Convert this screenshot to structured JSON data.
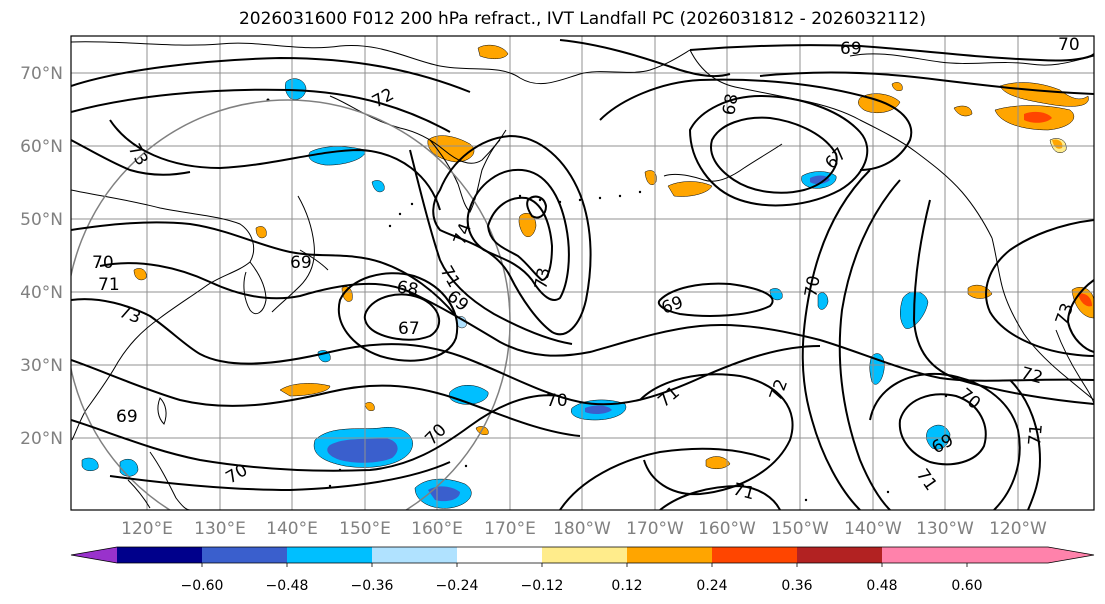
{
  "title": "2026031600 F012 200 hPa refract., IVT Landfall PC (2026031812 - 2026032112)",
  "lat_labels": [
    "70°N",
    "60°N",
    "50°N",
    "40°N",
    "30°N",
    "20°N"
  ],
  "lon_labels": [
    "120°E",
    "130°E",
    "140°E",
    "150°E",
    "160°E",
    "170°E",
    "180°W",
    "170°W",
    "160°W",
    "150°W",
    "140°W",
    "130°W",
    "120°W"
  ],
  "contour_labels": [
    "69",
    "70",
    "72",
    "68",
    "73",
    "67",
    "74",
    "73",
    "71",
    "69",
    "68",
    "67",
    "70",
    "69",
    "73",
    "71",
    "70",
    "71",
    "72",
    "69",
    "70",
    "72",
    "70",
    "71",
    "73",
    "69",
    "71",
    "70",
    "71",
    "70",
    "69"
  ],
  "colorbar": {
    "ticks": [
      "−0.60",
      "−0.48",
      "−0.36",
      "−0.24",
      "−0.12",
      "0.12",
      "0.24",
      "0.36",
      "0.48",
      "0.60"
    ],
    "colors": [
      "#9932cc",
      "#00008b",
      "#3a5fcd",
      "#00bfff",
      "#b0e2ff",
      "#ffffff",
      "#ffec8b",
      "#ffa500",
      "#ff4500",
      "#b22222",
      "#ff82ab"
    ]
  }
}
